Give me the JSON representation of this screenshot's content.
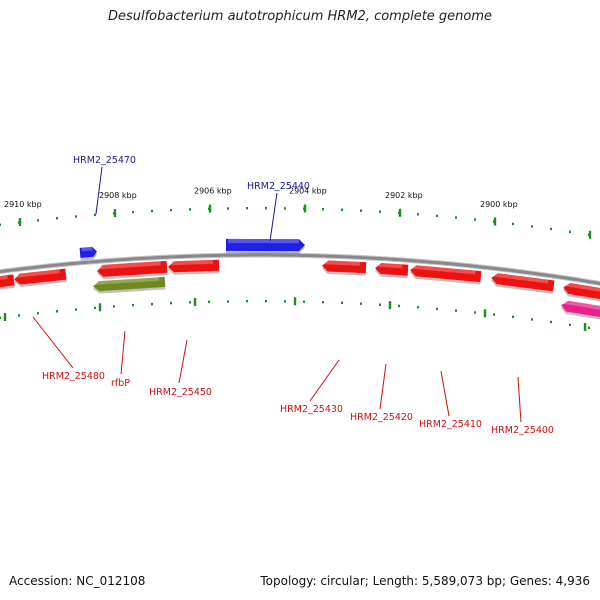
{
  "title": "Desulfobacterium autotrophicum HRM2, complete genome",
  "footer": {
    "accession": "Accession: NC_012108",
    "summary": "Topology: circular; Length: 5,589,073 bp; Genes: 4,936"
  },
  "colors": {
    "forward_gene": "#1f1fe8",
    "reverse_gene": "#ee1111",
    "rna_gene": "#6e8a1e",
    "other_gene": "#e8208c",
    "backbone": "#888888",
    "ticks": "#1e8c1e",
    "forward_label": "#1a1a9a",
    "reverse_label": "#cc1111"
  },
  "kbp_labels": [
    "2910 kbp",
    "2908 kbp",
    "2906 kbp",
    "2904 kbp",
    "2902 kbp",
    "2900 kbp"
  ],
  "gene_labels": [
    "HRM2_25470",
    "HRM2_25440",
    "HRM2_25480",
    "rfbP",
    "HRM2_25450",
    "HRM2_25430",
    "HRM2_25420",
    "HRM2_25410",
    "HRM2_25400"
  ]
}
